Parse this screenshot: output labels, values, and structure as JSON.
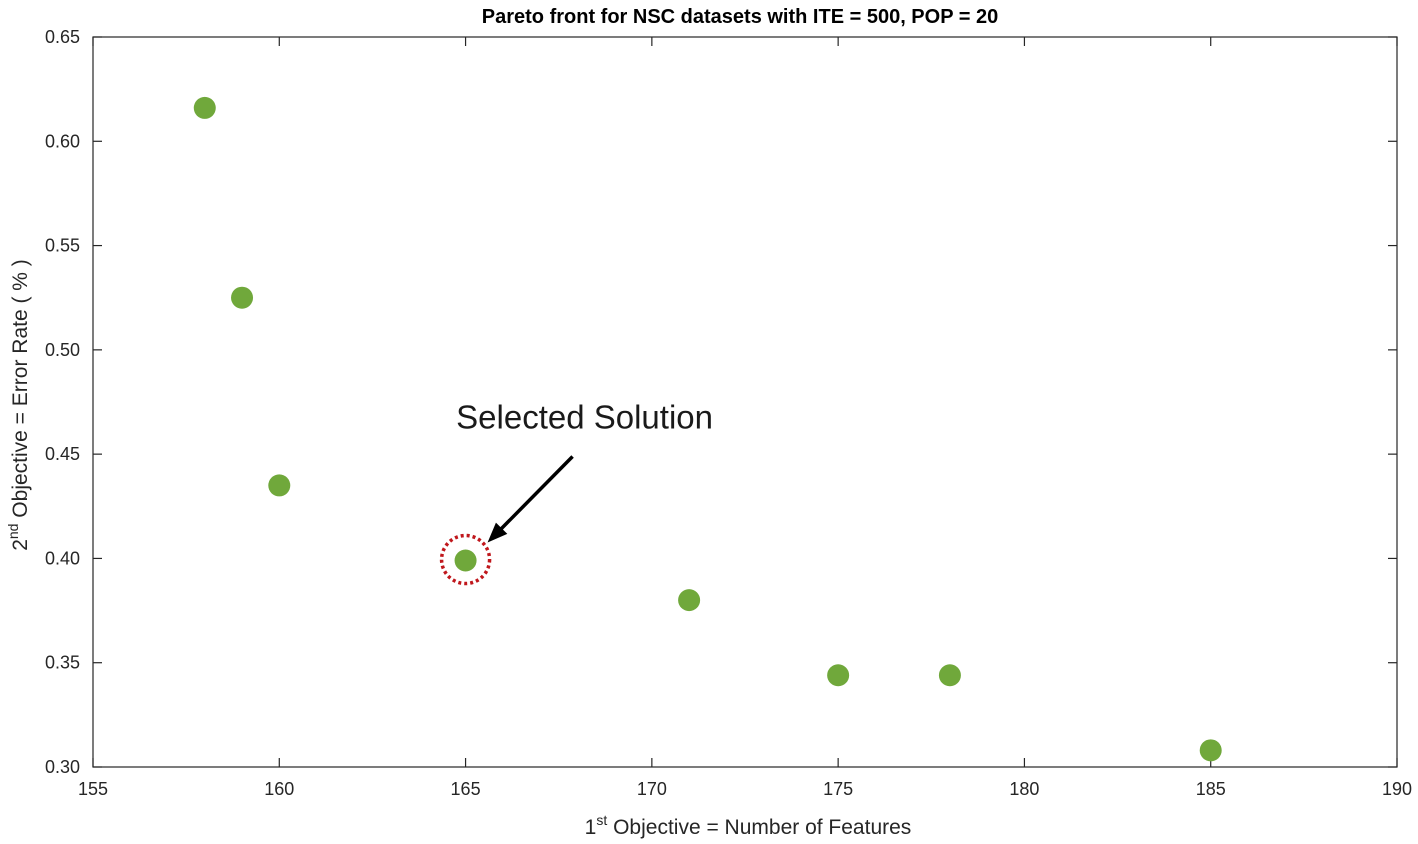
{
  "chart_data": {
    "type": "scatter",
    "title": "Pareto front for NSC datasets with ITE = 500, POP = 20",
    "xlabel": {
      "prefix": "1",
      "sup": "st",
      "text": " Objective = Number  of Features"
    },
    "ylabel": {
      "prefix": "2",
      "sup": "nd",
      "text": " Objective = Error Rate ( % )"
    },
    "xlim": [
      155,
      190
    ],
    "ylim": [
      0.3,
      0.65
    ],
    "xticks": [
      "155",
      "160",
      "165",
      "170",
      "175",
      "180",
      "185",
      "190"
    ],
    "yticks": [
      "0.30",
      "0.35",
      "0.40",
      "0.45",
      "0.50",
      "0.55",
      "0.60",
      "0.65"
    ],
    "grid": false,
    "series": [
      {
        "marker_color": "#70a83b",
        "points": [
          {
            "x": 158,
            "y": 0.616
          },
          {
            "x": 159,
            "y": 0.525
          },
          {
            "x": 160,
            "y": 0.435
          },
          {
            "x": 165,
            "y": 0.399
          },
          {
            "x": 171,
            "y": 0.38
          },
          {
            "x": 175,
            "y": 0.344
          },
          {
            "x": 178,
            "y": 0.344
          },
          {
            "x": 185,
            "y": 0.308
          }
        ]
      }
    ],
    "annotation": {
      "text": "Selected Solution",
      "target": {
        "x": 165,
        "y": 0.399
      },
      "highlight_color": "#c0171c"
    }
  }
}
